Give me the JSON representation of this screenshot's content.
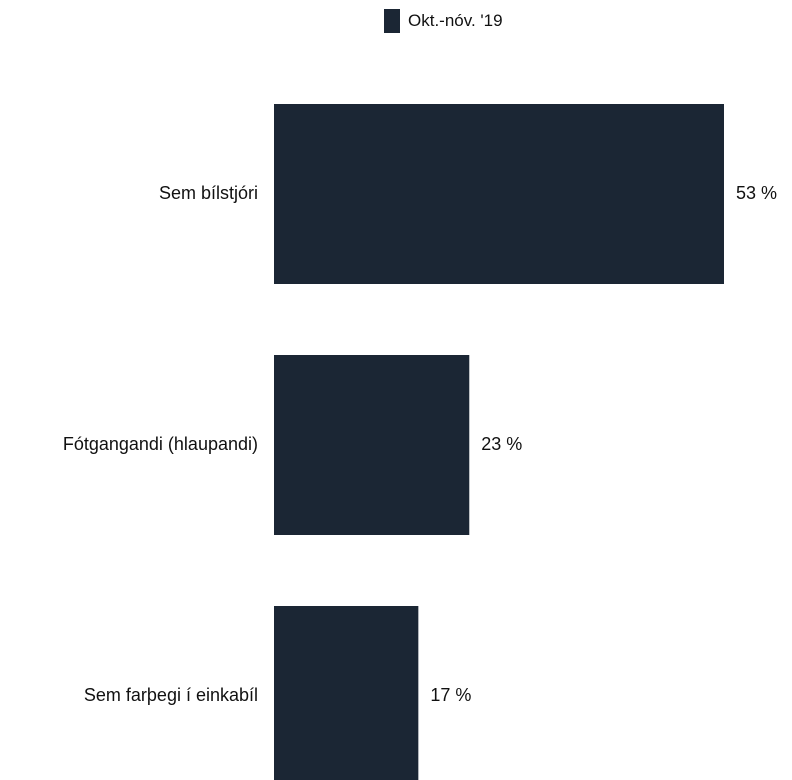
{
  "chart_data": {
    "type": "bar",
    "orientation": "horizontal",
    "categories": [
      "Sem bílstjóri",
      "Fótgangandi (hlaupandi)",
      "Sem farþegi í einkabíl"
    ],
    "series": [
      {
        "name": "Okt.-nóv. '19",
        "values": [
          53,
          23,
          17
        ],
        "color": "#1b2634"
      }
    ],
    "value_labels": [
      "53 %",
      "23 %",
      "17 %"
    ],
    "xlim": [
      0,
      60
    ],
    "unit": "%",
    "grid": false,
    "legend": "top-center"
  }
}
